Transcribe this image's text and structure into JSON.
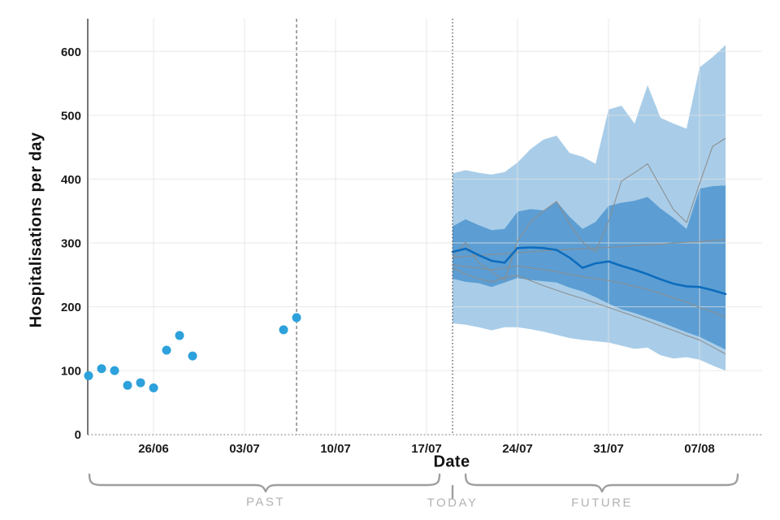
{
  "chart_data": {
    "type": "area",
    "subtype": "forecast-fan-with-observations",
    "title": "",
    "xlabel": "Date",
    "ylabel": "Hospitalisations per day",
    "ylim": [
      0,
      650
    ],
    "grid": true,
    "legend": "none",
    "y_ticks": [
      0,
      100,
      200,
      300,
      400,
      500,
      600
    ],
    "x_ticks": [
      {
        "label": "26/06",
        "day": 5
      },
      {
        "label": "03/07",
        "day": 12
      },
      {
        "label": "10/07",
        "day": 19
      },
      {
        "label": "17/07",
        "day": 26
      },
      {
        "label": "24/07",
        "day": 33
      },
      {
        "label": "31/07",
        "day": 40
      },
      {
        "label": "07/08",
        "day": 47
      }
    ],
    "observations": {
      "dates": [
        "21/06",
        "22/06",
        "23/06",
        "24/06",
        "25/06",
        "26/06",
        "27/06",
        "28/06",
        "29/06",
        "06/07",
        "07/07"
      ],
      "days": [
        0,
        1,
        2,
        3,
        4,
        5,
        6,
        7,
        8,
        15,
        16
      ],
      "values": [
        92,
        103,
        100,
        77,
        81,
        73,
        132,
        155,
        123,
        164,
        183
      ]
    },
    "cutoff_line": {
      "day": 16,
      "date": "07/07",
      "style": "dashed"
    },
    "today_line": {
      "day": 28,
      "date": "19/07",
      "style": "dotted"
    },
    "forecast": {
      "dates": [
        "19/07",
        "20/07",
        "21/07",
        "22/07",
        "23/07",
        "24/07",
        "25/07",
        "26/07",
        "27/07",
        "28/07",
        "29/07",
        "30/07",
        "31/07",
        "01/08",
        "02/08",
        "03/08",
        "04/08",
        "05/08",
        "06/08",
        "07/08",
        "08/08",
        "09/08"
      ],
      "start_day": 28,
      "p95": [
        409,
        414,
        410,
        407,
        411,
        426,
        447,
        462,
        468,
        441,
        435,
        424,
        509,
        515,
        487,
        547,
        496,
        487,
        479,
        575,
        591,
        610
      ],
      "p75": [
        326,
        337,
        328,
        320,
        322,
        349,
        353,
        351,
        365,
        341,
        322,
        333,
        358,
        363,
        366,
        372,
        354,
        339,
        322,
        385,
        389,
        390
      ],
      "median": [
        286,
        291,
        281,
        272,
        269,
        292,
        293,
        292,
        289,
        277,
        261,
        268,
        271,
        264,
        258,
        251,
        243,
        236,
        232,
        231,
        226,
        220
      ],
      "p25": [
        244,
        239,
        237,
        231,
        238,
        245,
        242,
        240,
        238,
        230,
        224,
        215,
        205,
        196,
        190,
        183,
        176,
        168,
        160,
        153,
        143,
        133
      ],
      "p05": [
        174,
        172,
        168,
        163,
        168,
        168,
        165,
        161,
        156,
        151,
        148,
        146,
        144,
        139,
        134,
        136,
        124,
        119,
        121,
        117,
        108,
        100
      ],
      "samples": [
        {
          "name": "trajectory-1",
          "values": [
            277,
            301,
            269,
            255,
            241,
            303,
            333,
            350,
            365,
            330,
            301,
            286,
            334,
            397,
            410,
            424,
            388,
            352,
            332,
            393,
            451,
            464
          ]
        },
        {
          "name": "trajectory-2",
          "values": [
            277,
            279,
            280,
            282,
            283,
            285,
            286,
            288,
            289,
            290,
            291,
            292,
            293,
            294,
            296,
            297,
            298,
            300,
            301,
            302,
            304,
            305
          ]
        },
        {
          "name": "trajectory-3",
          "values": [
            266,
            263,
            261,
            258,
            261,
            264,
            261,
            258,
            255,
            251,
            247,
            244,
            241,
            237,
            232,
            227,
            221,
            214,
            207,
            199,
            192,
            184
          ]
        },
        {
          "name": "trajectory-4",
          "values": [
            261,
            251,
            244,
            239,
            246,
            249,
            241,
            233,
            226,
            219,
            213,
            206,
            199,
            192,
            185,
            178,
            170,
            163,
            155,
            148,
            137,
            126
          ]
        }
      ]
    },
    "annotations": {
      "past_label": "PAST",
      "today_label": "TODAY",
      "future_label": "FUTURE"
    },
    "colors": {
      "observed_dot": "#2da1db",
      "outer_band": "#a9cde8",
      "inner_band": "#5c9ed3",
      "median_line": "#0d6cbd",
      "sample_line": "#8c8c8c",
      "grid_line": "#e2e2e2",
      "axis_line": "#3a3a3a",
      "baseline": "#9a9a9a",
      "cutoff_line": "#757575",
      "today_line": "#4a4a4a",
      "brace": "#9e9e9e",
      "zone_label": "#b2b2b2",
      "tick_label": "#1b1b1b"
    }
  }
}
